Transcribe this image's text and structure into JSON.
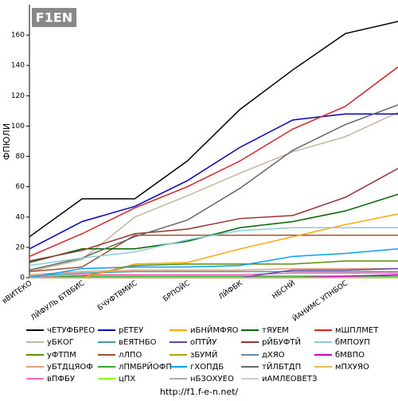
{
  "chart_data": {
    "type": "line",
    "logo": "F1EN",
    "y_label": "ФПЮЛИ",
    "source": "http://f1.f-e-n.net/",
    "categories": [
      "вВИТЕКО",
      "ЛЙФУЛЬ БТВБИС",
      "БЧУФТВМИС",
      "БРПОЙС",
      "ЛЙФБК",
      "НБСНЙ",
      "ЙАНИМС УПНБОС",
      null
    ],
    "ylim": [
      0,
      180
    ],
    "yticks": [
      0,
      20,
      40,
      60,
      80,
      100,
      120,
      140,
      160
    ],
    "series": [
      {
        "name": "чЕТУФБРЕО",
        "color": "#000000",
        "values": [
          27,
          52,
          52,
          77,
          111,
          137,
          161,
          169
        ]
      },
      {
        "name": "уБКОГ",
        "color": "#c8b49a",
        "values": [
          4,
          12,
          40,
          54,
          69,
          83,
          93,
          109
        ]
      },
      {
        "name": "уФТПМ",
        "color": "#5a8f00",
        "values": [
          0,
          1,
          8,
          9,
          9,
          9,
          11,
          11
        ]
      },
      {
        "name": "уБТДЦЯОФ",
        "color": "#e0a080",
        "values": [
          2,
          4,
          5,
          5,
          5,
          6,
          6,
          6
        ]
      },
      {
        "name": "вПФБУ",
        "color": "#ff69b4",
        "values": [
          0,
          2,
          2,
          2,
          2,
          3,
          3,
          3
        ]
      },
      {
        "name": "рЕТЕУ",
        "color": "#0000cc",
        "values": [
          19,
          37,
          47,
          64,
          86,
          104,
          108,
          108
        ]
      },
      {
        "name": "вЕЯТНБО",
        "color": "#40a0a0",
        "values": [
          1,
          3,
          4,
          4,
          4,
          4,
          4,
          4
        ]
      },
      {
        "name": "лЛПО",
        "color": "#a05030",
        "values": [
          4,
          7,
          28,
          28,
          28,
          28,
          28,
          28
        ]
      },
      {
        "name": "лПМБРЙОФП",
        "color": "#33aa33",
        "values": [
          0,
          1,
          1,
          1,
          1,
          1,
          1,
          1
        ]
      },
      {
        "name": "цПХ",
        "color": "#88ff00",
        "values": [
          0,
          0,
          0,
          0,
          0,
          0,
          0,
          0
        ]
      },
      {
        "name": "иБНЙМФЯО",
        "color": "#ffa500",
        "values": [
          0,
          0,
          9,
          10,
          19,
          27,
          35,
          42
        ]
      },
      {
        "name": "оПТЙУ",
        "color": "#6644aa",
        "values": [
          0,
          0,
          0,
          0,
          0,
          5,
          5,
          6
        ]
      },
      {
        "name": "зБУМЙ",
        "color": "#aaaa00",
        "values": [
          0,
          0,
          0,
          0,
          0,
          0,
          0,
          0
        ]
      },
      {
        "name": "гХОПДБ",
        "color": "#00a0ff",
        "values": [
          0,
          6,
          7,
          7,
          8,
          14,
          16,
          19
        ]
      },
      {
        "name": "нБЗОХУЕО",
        "color": "#aaaaaa",
        "values": [
          0,
          0,
          0,
          0,
          0,
          0,
          0,
          0
        ]
      },
      {
        "name": "тЯУЕМ",
        "color": "#006600",
        "values": [
          10,
          19,
          19,
          24,
          33,
          37,
          44,
          55
        ]
      },
      {
        "name": "рЙБУФТЙ",
        "color": "#993333",
        "values": [
          11,
          18,
          29,
          32,
          39,
          41,
          53,
          72
        ]
      },
      {
        "name": "дХЯО",
        "color": "#6688aa",
        "values": [
          0,
          0,
          0,
          0,
          0,
          0,
          0,
          0
        ]
      },
      {
        "name": "тЙЛБТДП",
        "color": "#666666",
        "values": [
          5,
          13,
          27,
          38,
          59,
          84,
          101,
          114
        ]
      },
      {
        "name": "иАМЛЕОВЕТЗ",
        "color": "#cccccc",
        "values": [
          0,
          0,
          0,
          0,
          0,
          0,
          0,
          0
        ]
      },
      {
        "name": "мШПЛМЕТ",
        "color": "#e02020",
        "values": [
          14,
          29,
          46,
          60,
          77,
          98,
          113,
          139
        ]
      },
      {
        "name": "бМПОУП",
        "color": "#88ccdd",
        "values": [
          8,
          13,
          17,
          25,
          31,
          33,
          33,
          33
        ]
      },
      {
        "name": "бМВПО",
        "color": "#cc00cc",
        "values": [
          0,
          0,
          0,
          0,
          0,
          0,
          1,
          2
        ]
      },
      {
        "name": "мПХУЯО",
        "color": "#e0c060",
        "values": [
          0,
          0,
          0,
          0,
          0,
          0,
          0,
          0
        ]
      }
    ]
  }
}
